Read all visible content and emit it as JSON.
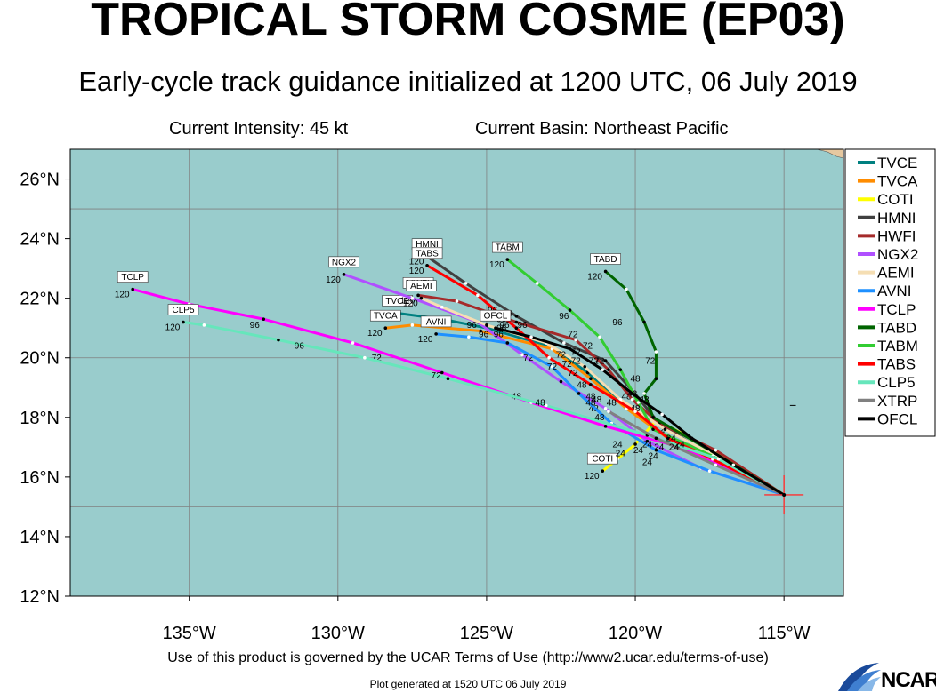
{
  "title": "TROPICAL STORM COSME (EP03)",
  "subtitle": "Early-cycle track guidance initialized at 1200 UTC, 06 July 2019",
  "current_intensity": "Current Intensity: 45 kt",
  "current_basin": "Current Basin: Northeast Pacific",
  "footer": "Use of this product is governed by the UCAR Terms of Use (http://www2.ucar.edu/terms-of-use)",
  "plot_generated": "Plot generated at 1520 UTC   06 July 2019",
  "logo_text": "NCAR",
  "colors": {
    "ocean": "#99cccc",
    "land": "#e6c8a0",
    "grid": "#808080"
  },
  "chart_data": {
    "type": "line",
    "xlim": [
      -139,
      -113
    ],
    "ylim": [
      12,
      27
    ],
    "x_ticks": [
      -135,
      -130,
      -125,
      -120,
      -115
    ],
    "x_tick_labels": [
      "135°W",
      "130°W",
      "125°W",
      "120°W",
      "115°W"
    ],
    "y_ticks": [
      12,
      14,
      16,
      18,
      20,
      22,
      24,
      26
    ],
    "y_tick_labels": [
      "12°N",
      "14°N",
      "16°N",
      "18°N",
      "20°N",
      "22°N",
      "24°N",
      "26°N"
    ],
    "grid": true,
    "legend_position": "right",
    "initial_position": [
      -115.0,
      15.4
    ],
    "series": [
      {
        "name": "TVCE",
        "color": "#008080",
        "points": [
          [
            -115.0,
            15.4
          ],
          [
            -117.3,
            16.6
          ],
          [
            -119.0,
            17.4
          ],
          [
            -120.4,
            18.4
          ],
          [
            -121.6,
            19.5
          ],
          [
            -122.9,
            20.4
          ],
          [
            -125.0,
            21.0
          ],
          [
            -126.5,
            21.3
          ],
          [
            -128.0,
            21.5
          ]
        ],
        "labels": [],
        "end_label": "120",
        "tag": "TVCE"
      },
      {
        "name": "TVCA",
        "color": "#ff8c00",
        "points": [
          [
            -115.0,
            15.4
          ],
          [
            -117.2,
            16.5
          ],
          [
            -118.9,
            17.3
          ],
          [
            -120.3,
            18.3
          ],
          [
            -121.5,
            19.3
          ],
          [
            -122.8,
            20.3
          ],
          [
            -125.2,
            20.9
          ],
          [
            -127.5,
            21.1
          ],
          [
            -128.4,
            21.0
          ]
        ],
        "labels": [],
        "end_label": "120",
        "tag": "TVCA"
      },
      {
        "name": "COTI",
        "color": "#ffff00",
        "points": [
          [
            -115.0,
            15.4
          ],
          [
            -116.9,
            16.6
          ],
          [
            -118.3,
            17.4
          ],
          [
            -119.3,
            17.9
          ],
          [
            -120.0,
            17.1
          ],
          [
            -120.6,
            16.6
          ],
          [
            -121.1,
            16.2
          ]
        ],
        "labels": [
          [
            -119.0,
            17.5,
            "24"
          ]
        ],
        "end_label": "120",
        "tag": "COTI"
      },
      {
        "name": "HMNI",
        "color": "#404040",
        "points": [
          [
            -115.0,
            15.4
          ],
          [
            -117.6,
            16.8
          ],
          [
            -119.2,
            17.8
          ],
          [
            -120.1,
            18.9
          ],
          [
            -121.0,
            19.9
          ],
          [
            -122.4,
            20.5
          ],
          [
            -124.0,
            21.4
          ],
          [
            -125.7,
            22.5
          ],
          [
            -127.0,
            23.4
          ]
        ],
        "labels": [
          [
            -120.3,
            18.6,
            "48"
          ],
          [
            -122.1,
            20.7,
            "72"
          ],
          [
            -124.5,
            21.2,
            "96"
          ]
        ],
        "end_label": "120",
        "tag": "HMNI"
      },
      {
        "name": "HWFI",
        "color": "#a52a2a",
        "points": [
          [
            -115.0,
            15.4
          ],
          [
            -117.3,
            16.9
          ],
          [
            -119.2,
            17.8
          ],
          [
            -120.1,
            18.6
          ],
          [
            -120.9,
            19.6
          ],
          [
            -122.0,
            20.6
          ],
          [
            -124.0,
            21.2
          ],
          [
            -126.0,
            21.9
          ],
          [
            -127.3,
            22.1
          ]
        ],
        "labels": [
          [
            -120.0,
            19.2,
            "48"
          ],
          [
            -121.6,
            20.3,
            "72"
          ],
          [
            -124.3,
            21.4,
            "96"
          ]
        ],
        "end_label": "120",
        "tag": "HWFI"
      },
      {
        "name": "NGX2",
        "color": "#b050ff",
        "points": [
          [
            -115.0,
            15.4
          ],
          [
            -117.8,
            16.3
          ],
          [
            -119.6,
            17.2
          ],
          [
            -121.0,
            18.3
          ],
          [
            -122.5,
            19.2
          ],
          [
            -123.8,
            20.1
          ],
          [
            -125.3,
            21.2
          ],
          [
            -127.5,
            22.0
          ],
          [
            -129.8,
            22.8
          ]
        ],
        "labels": [
          [
            -121.4,
            18.2,
            "48"
          ],
          [
            -123.6,
            19.9,
            "72"
          ],
          [
            -125.5,
            21.0,
            "96"
          ]
        ],
        "end_label": "120",
        "tag": "NGX2"
      },
      {
        "name": "AEMI",
        "color": "#f5deb3",
        "points": [
          [
            -115.0,
            15.4
          ],
          [
            -117.3,
            16.7
          ],
          [
            -119.0,
            17.6
          ],
          [
            -120.5,
            18.6
          ],
          [
            -121.7,
            19.7
          ],
          [
            -123.0,
            20.5
          ],
          [
            -125.0,
            21.1
          ],
          [
            -126.5,
            21.7
          ],
          [
            -127.2,
            22.0
          ]
        ],
        "labels": [],
        "end_label": "120",
        "tag": "AEMI"
      },
      {
        "name": "AVNI",
        "color": "#1e90ff",
        "points": [
          [
            -115.0,
            15.4
          ],
          [
            -117.5,
            16.2
          ],
          [
            -119.3,
            16.9
          ],
          [
            -120.8,
            17.8
          ],
          [
            -121.9,
            18.8
          ],
          [
            -122.8,
            19.7
          ],
          [
            -124.3,
            20.5
          ],
          [
            -125.6,
            20.7
          ],
          [
            -126.7,
            20.8
          ]
        ],
        "labels": [
          [
            -120.5,
            16.7,
            "24"
          ],
          [
            -121.5,
            18.6,
            "48"
          ],
          [
            -122.8,
            19.6,
            "72"
          ],
          [
            -124.6,
            20.7,
            "96"
          ]
        ],
        "end_label": "120",
        "tag": "AVNI"
      },
      {
        "name": "TCLP",
        "color": "#ff00ff",
        "points": [
          [
            -115.0,
            15.4
          ],
          [
            -118.5,
            17.0
          ],
          [
            -121.0,
            17.7
          ],
          [
            -123.5,
            18.5
          ],
          [
            -126.5,
            19.5
          ],
          [
            -129.5,
            20.5
          ],
          [
            -132.5,
            21.3
          ],
          [
            -135.0,
            21.8
          ],
          [
            -136.9,
            22.3
          ]
        ],
        "labels": [
          [
            -120.6,
            17.0,
            "24"
          ],
          [
            -124.0,
            18.6,
            "48"
          ],
          [
            -128.7,
            19.9,
            "72"
          ],
          [
            -132.8,
            21.0,
            "96"
          ]
        ],
        "end_label": "120",
        "tag": "TCLP"
      },
      {
        "name": "TABD",
        "color": "#006400",
        "points": [
          [
            -115.0,
            15.4
          ],
          [
            -117.5,
            16.9
          ],
          [
            -119.4,
            18.0
          ],
          [
            -119.7,
            18.8
          ],
          [
            -119.3,
            19.3
          ],
          [
            -119.3,
            20.2
          ],
          [
            -119.7,
            21.2
          ],
          [
            -120.3,
            22.3
          ],
          [
            -121.0,
            22.9
          ]
        ],
        "labels": [
          [
            -119.5,
            19.8,
            "72"
          ],
          [
            -120.6,
            21.1,
            "96"
          ]
        ],
        "end_label": "120",
        "tag": "TABD"
      },
      {
        "name": "TABM",
        "color": "#32cd32",
        "points": [
          [
            -115.0,
            15.4
          ],
          [
            -117.4,
            16.7
          ],
          [
            -119.4,
            17.6
          ],
          [
            -119.9,
            18.5
          ],
          [
            -120.5,
            19.6
          ],
          [
            -121.2,
            20.7
          ],
          [
            -122.2,
            21.6
          ],
          [
            -123.3,
            22.5
          ],
          [
            -124.3,
            23.3
          ]
        ],
        "labels": [
          [
            -120.0,
            18.2,
            "48"
          ],
          [
            -121.4,
            19.8,
            "72"
          ],
          [
            -122.4,
            21.3,
            "96"
          ]
        ],
        "end_label": "120",
        "tag": "TABM"
      },
      {
        "name": "TABS",
        "color": "#ff0000",
        "points": [
          [
            -115.0,
            15.4
          ],
          [
            -117.4,
            16.6
          ],
          [
            -118.9,
            17.3
          ],
          [
            -120.0,
            18.2
          ],
          [
            -121.5,
            19.1
          ],
          [
            -122.9,
            20.0
          ],
          [
            -124.0,
            21.0
          ],
          [
            -125.3,
            22.1
          ],
          [
            -127.0,
            23.1
          ]
        ],
        "labels": [
          [
            -120.8,
            18.4,
            "48"
          ],
          [
            -122.0,
            19.8,
            "72"
          ],
          [
            -124.8,
            21.5,
            "96"
          ]
        ],
        "end_label": "120",
        "tag": "TABS"
      },
      {
        "name": "CLP5",
        "color": "#66e6bb",
        "points": [
          [
            -115.0,
            15.4
          ],
          [
            -117.2,
            16.6
          ],
          [
            -119.6,
            17.4
          ],
          [
            -123.0,
            18.4
          ],
          [
            -126.3,
            19.3
          ],
          [
            -129.1,
            20.0
          ],
          [
            -132.0,
            20.6
          ],
          [
            -134.5,
            21.1
          ],
          [
            -135.2,
            21.2
          ]
        ],
        "labels": [
          [
            -119.4,
            16.6,
            "24"
          ],
          [
            -123.2,
            18.4,
            "48"
          ],
          [
            -126.7,
            19.3,
            "72"
          ],
          [
            -131.3,
            20.3,
            "96"
          ]
        ],
        "end_label": "120",
        "tag": "CLP5"
      },
      {
        "name": "XTRP",
        "color": "#808080",
        "points": [
          [
            -115.0,
            15.4
          ],
          [
            -117.3,
            16.4
          ],
          [
            -119.3,
            17.3
          ],
          [
            -120.9,
            18.2
          ]
        ],
        "labels": [],
        "end_label": "",
        "tag": ""
      },
      {
        "name": "OFCL",
        "color": "#000000",
        "points": [
          [
            -115.0,
            15.4
          ],
          [
            -116.7,
            16.4
          ],
          [
            -118.1,
            17.3
          ],
          [
            -119.1,
            18.1
          ],
          [
            -120.1,
            18.8
          ],
          [
            -121.1,
            19.6
          ],
          [
            -122.2,
            20.3
          ],
          [
            -123.5,
            20.7
          ],
          [
            -124.7,
            21.0
          ]
        ],
        "labels": [
          [
            -120.1,
            18.7,
            "48"
          ],
          [
            -122.0,
            20.1,
            "72"
          ],
          [
            -123.8,
            21.0,
            "96"
          ]
        ],
        "end_label": "",
        "tag": "OFCL"
      }
    ],
    "extra_labels": [
      [
        -119.2,
        16.9,
        "24"
      ],
      [
        -119.6,
        17.0,
        "24"
      ],
      [
        -118.8,
        17.2,
        "24"
      ],
      [
        -119.6,
        16.4,
        "24"
      ],
      [
        -118.7,
        16.9,
        "24"
      ],
      [
        -121.3,
        18.5,
        "48"
      ],
      [
        -121.5,
        18.4,
        "48"
      ],
      [
        -121.2,
        17.9,
        "48"
      ],
      [
        -121.8,
        19.0,
        "48"
      ],
      [
        -122.3,
        19.7,
        "72"
      ],
      [
        -122.5,
        20.0,
        "72"
      ],
      [
        -121.2,
        19.8,
        "72"
      ],
      [
        -122.1,
        19.4,
        "72"
      ],
      [
        -124.4,
        21.0,
        "96"
      ],
      [
        -125.1,
        20.7,
        "96"
      ],
      [
        -124.5,
        20.9,
        "96"
      ],
      [
        -119.7,
        18.5,
        "48"
      ],
      [
        -119.9,
        16.8,
        "24"
      ],
      [
        -118.5,
        17.0,
        "24"
      ]
    ]
  }
}
